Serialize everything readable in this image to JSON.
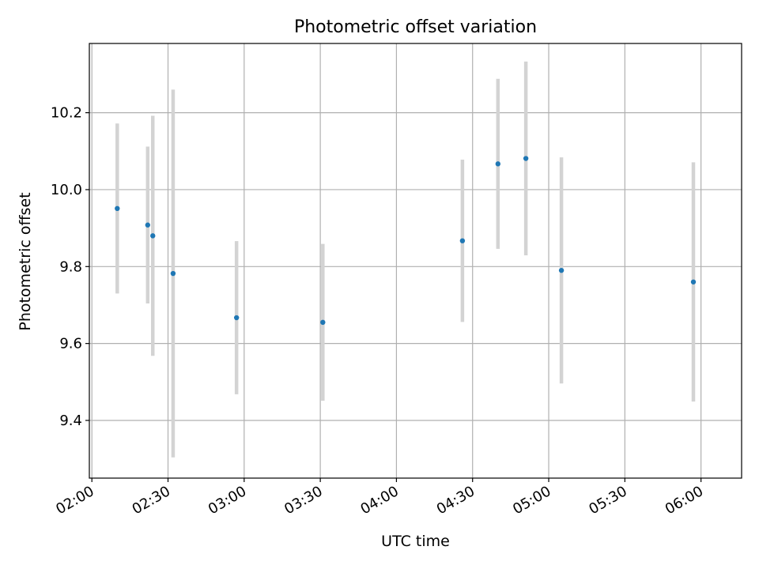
{
  "chart_data": {
    "type": "scatter",
    "title": "Photometric offset variation",
    "xlabel": "UTC time",
    "ylabel": "Photometric offset",
    "xlim": [
      "01:59",
      "06:16"
    ],
    "ylim": [
      9.25,
      10.38
    ],
    "x_ticks": [
      "02:00",
      "02:30",
      "03:00",
      "03:30",
      "04:00",
      "04:30",
      "05:00",
      "05:30",
      "06:00"
    ],
    "y_ticks": [
      "9.4",
      "9.6",
      "9.8",
      "10.0",
      "10.2"
    ],
    "grid": true,
    "x_tick_rotation": "30 degrees",
    "point_color": "#1f77b4",
    "errorbar_color": "#d3d3d3",
    "points": [
      {
        "x": "02:10",
        "y": 9.951,
        "yerr": 0.221
      },
      {
        "x": "02:22",
        "y": 9.908,
        "yerr": 0.204
      },
      {
        "x": "02:24",
        "y": 9.88,
        "yerr": 0.312
      },
      {
        "x": "02:32",
        "y": 9.782,
        "yerr": 0.478
      },
      {
        "x": "02:57",
        "y": 9.667,
        "yerr": 0.199
      },
      {
        "x": "03:31",
        "y": 9.655,
        "yerr": 0.204
      },
      {
        "x": "04:26",
        "y": 9.867,
        "yerr": 0.211
      },
      {
        "x": "04:40",
        "y": 10.067,
        "yerr": 0.221
      },
      {
        "x": "04:51",
        "y": 10.081,
        "yerr": 0.252
      },
      {
        "x": "05:05",
        "y": 9.79,
        "yerr": 0.294
      },
      {
        "x": "05:57",
        "y": 9.76,
        "yerr": 0.311
      }
    ]
  }
}
